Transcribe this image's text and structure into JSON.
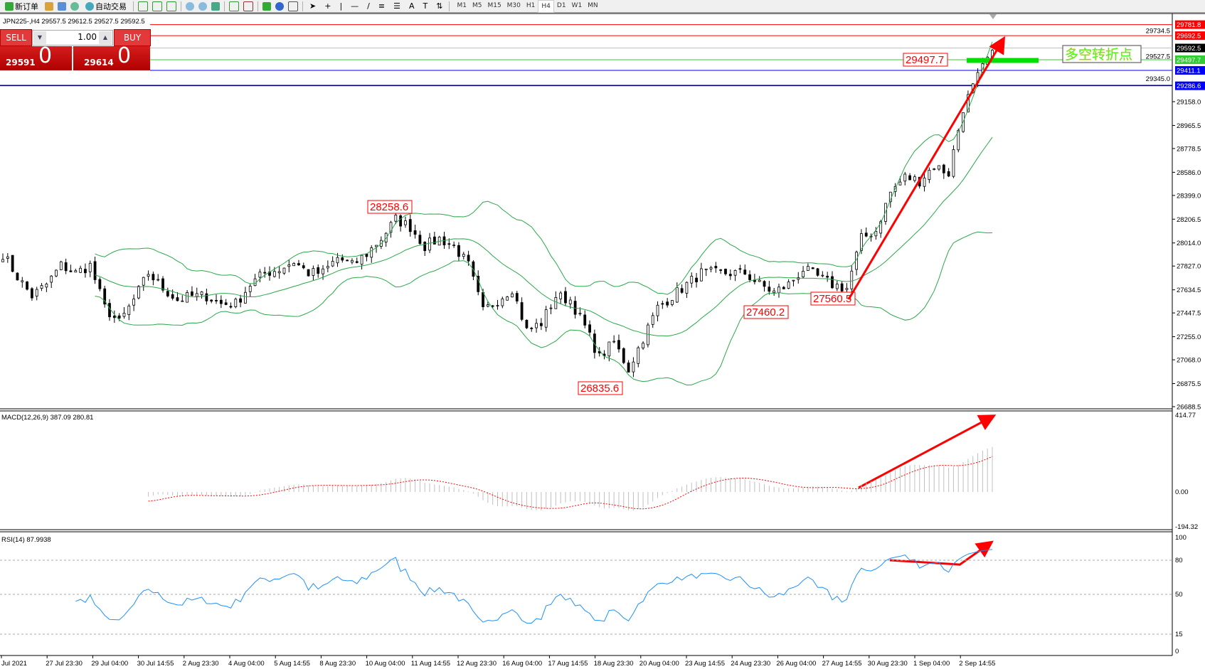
{
  "toolbar": {
    "new_order": "新订单",
    "auto_trading": "自动交易",
    "timeframes": [
      "M1",
      "M5",
      "M15",
      "M30",
      "H1",
      "H4",
      "D1",
      "W1",
      "MN"
    ],
    "active_timeframe": "H4",
    "icons": [
      "new-order-icon",
      "metaeditor-icon",
      "market-watch-icon",
      "signals-icon",
      "auto-trading-icon",
      "bar-chart-icon",
      "candlestick-icon",
      "line-chart-icon",
      "zoom-in-icon",
      "zoom-out-icon",
      "tile-windows-icon",
      "autoscroll-icon",
      "chart-shift-icon",
      "indicators-icon",
      "periods-icon",
      "templates-icon",
      "cursor-icon",
      "crosshair-icon",
      "vertical-line-icon",
      "horizontal-line-icon",
      "trendline-icon",
      "fibonacci-icon",
      "fibo-fan-icon",
      "text-icon",
      "text-label-icon",
      "arrows-icon"
    ]
  },
  "chart_header": "JPN225-,H4  29557.5 29612.5 29527.5 29592.5",
  "trade_panel": {
    "sell_label": "SELL",
    "buy_label": "BUY",
    "lot": "1.00",
    "sell_main": "29591",
    "sell_frac": "0",
    "buy_main": "29614",
    "buy_frac": "0"
  },
  "colors": {
    "up_candle": "#ffffff",
    "down_candle": "#000000",
    "bands": "#2aa84a",
    "macd_hist": "#c0c0c0",
    "macd_signal": "#ff0000",
    "rsi": "#1e90ff",
    "annotation": "#ff0000",
    "pivot_text": "#33ff33"
  },
  "chart_data": {
    "type": "candlestick",
    "symbol": "JPN225-",
    "timeframe": "H4",
    "price_path": [
      27926,
      27740,
      27584,
      27678,
      27833,
      27771,
      27833,
      27491,
      27367,
      27553,
      27771,
      27647,
      27553,
      27584,
      27584,
      27522,
      27522,
      27678,
      27771,
      27802,
      27864,
      27771,
      27771,
      27895,
      27833,
      27926,
      28050,
      28206,
      28144,
      27989,
      28050,
      27989,
      27833,
      27460,
      27553,
      27647,
      27305,
      27367,
      27584,
      27553,
      27336,
      27087,
      27212,
      26993,
      27243,
      27491,
      27584,
      27678,
      27771,
      27771,
      27771,
      27771,
      27678,
      27615,
      27678,
      27802,
      27740,
      27678,
      27647,
      28050,
      28113,
      28424,
      28548,
      28517,
      28641,
      28579,
      29108,
      29357,
      29575
    ],
    "price_ticks": [
      "29158.0",
      "28965.5",
      "28778.5",
      "28586.0",
      "28399.0",
      "28206.5",
      "28014.0",
      "27827.0",
      "27634.5",
      "27447.5",
      "27255.0",
      "27068.0",
      "26875.5",
      "26688.5"
    ],
    "price_lines": [
      {
        "price": "29781.8",
        "color": "#ff0000"
      },
      {
        "price": "29692.5",
        "color": "#ff0000"
      },
      {
        "price": "29592.5",
        "color": "#000000",
        "line": "#c0c0c0"
      },
      {
        "price": "29497.7",
        "color": "#33cc33"
      },
      {
        "price": "29411.1",
        "color": "#0000ff"
      },
      {
        "price": "29286.6",
        "color": "#0000ff"
      }
    ],
    "extra_axis_labels": [
      "29734.5",
      "29527.5",
      "29345.0"
    ],
    "annotations": [
      "28258.6",
      "26835.6",
      "27460.2",
      "27560.5",
      "29497.7"
    ],
    "pivot_label": "多空转折点",
    "time_labels": [
      "Jul 2021",
      "27 Jul 23:30",
      "29 Jul 04:00",
      "30 Jul 14:55",
      "2 Aug 23:30",
      "4 Aug 04:00",
      "5 Aug 14:55",
      "8 Aug 23:30",
      "10 Aug 04:00",
      "11 Aug 14:55",
      "12 Aug 23:30",
      "16 Aug 04:00",
      "17 Aug 14:55",
      "18 Aug 23:30",
      "20 Aug 04:00",
      "23 Aug 14:55",
      "24 Aug 23:30",
      "26 Aug 04:00",
      "27 Aug 14:55",
      "30 Aug 23:30",
      "1 Sep 04:00",
      "2 Sep 14:55"
    ],
    "indicators": {
      "bollinger": {
        "period": 20,
        "deviation": 2
      },
      "macd": {
        "label": "MACD(12,26,9) 387.09 280.81",
        "ticks": [
          "414.77",
          "0.00",
          "-194.32"
        ],
        "range": [
          -194.32,
          414.77
        ]
      },
      "rsi": {
        "label": "RSI(14) 87.9938",
        "ticks": [
          "100",
          "80",
          "50",
          "15",
          "0"
        ],
        "levels": [
          80,
          50,
          15
        ]
      }
    }
  }
}
